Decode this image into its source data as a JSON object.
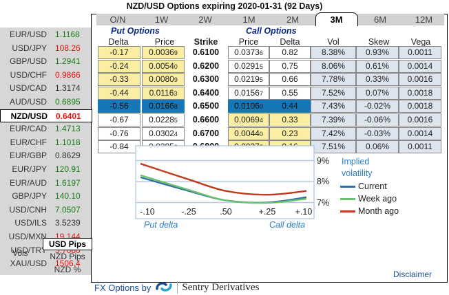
{
  "title": "NZD/USD Options expiring 2020-01-31 (92 Days)",
  "tabs": [
    {
      "label": "O/N",
      "active": false
    },
    {
      "label": "1W",
      "active": false
    },
    {
      "label": "2W",
      "active": false
    },
    {
      "label": "1M",
      "active": false
    },
    {
      "label": "2M",
      "active": false
    },
    {
      "label": "3M",
      "active": true
    },
    {
      "label": "6M",
      "active": false
    },
    {
      "label": "12M",
      "active": false
    }
  ],
  "pairs": [
    {
      "name": "EUR/USD",
      "value": "1.1168",
      "color": "green"
    },
    {
      "name": "USD/JPY",
      "value": "108.26",
      "color": "red"
    },
    {
      "name": "GBP/USD",
      "value": "1.2941",
      "color": "green"
    },
    {
      "name": "USD/CHF",
      "value": "0.9866",
      "color": "red"
    },
    {
      "name": "USD/CAD",
      "value": "1.3174",
      "color": "gray"
    },
    {
      "name": "AUD/USD",
      "value": "0.6895",
      "color": "green"
    },
    {
      "name": "NZD/USD",
      "value": "0.6401",
      "color": "red",
      "selected": true
    },
    {
      "name": "EUR/CAD",
      "value": "1.4713",
      "color": "green"
    },
    {
      "name": "EUR/CHF",
      "value": "1.1018",
      "color": "green"
    },
    {
      "name": "EUR/GBP",
      "value": "0.8629",
      "color": "gray"
    },
    {
      "name": "EUR/JPY",
      "value": "120.91",
      "color": "green"
    },
    {
      "name": "EUR/AUD",
      "value": "1.6197",
      "color": "green"
    },
    {
      "name": "GBP/JPY",
      "value": "140.10",
      "color": "green"
    },
    {
      "name": "USD/CNH",
      "value": "7.0507",
      "color": "green"
    },
    {
      "name": "USD/ILS",
      "value": "3.5239",
      "color": "gray"
    },
    {
      "name": "USD/MXN",
      "value": "19.144",
      "color": "red"
    },
    {
      "name": "USD/TRY",
      "value": "5.7080",
      "color": "red"
    },
    {
      "name": "XAU/USD",
      "value": "1506.4",
      "color": "red"
    }
  ],
  "units": {
    "vols_label": "Vols",
    "options": [
      {
        "label": "USD Pips",
        "selected": true
      },
      {
        "label": "NZD Pips",
        "selected": false
      },
      {
        "label": "NZD %",
        "selected": false
      }
    ]
  },
  "table": {
    "put_header": "Put Options",
    "call_header": "Call Options",
    "columns": {
      "put_delta": "Delta",
      "put_price": "Price",
      "strike": "Strike",
      "call_price": "Price",
      "call_delta": "Delta",
      "vol": "Vol",
      "skew": "Skew",
      "vega": "Vega"
    },
    "rows": [
      {
        "put_delta": "-0.17",
        "put_price": "0.0036",
        "put_price_sub": "9",
        "strike": "0.6100",
        "call_price": "0.0373",
        "call_price_sub": "6",
        "call_delta": "0.82",
        "vol": "8.38%",
        "skew": "0.93%",
        "vega": "0.0011",
        "put_style": "yellow",
        "call_style": "white"
      },
      {
        "put_delta": "-0.24",
        "put_price": "0.0054",
        "put_price_sub": "0",
        "strike": "0.6200",
        "call_price": "0.0291",
        "call_price_sub": "5",
        "call_delta": "0.75",
        "vol": "8.06%",
        "skew": "0.61%",
        "vega": "0.0014",
        "put_style": "yellow",
        "call_style": "white"
      },
      {
        "put_delta": "-0.33",
        "put_price": "0.0080",
        "put_price_sub": "9",
        "strike": "0.6300",
        "call_price": "0.0219",
        "call_price_sub": "5",
        "call_delta": "0.66",
        "vol": "7.78%",
        "skew": "0.33%",
        "vega": "0.0016",
        "put_style": "yellow",
        "call_style": "white"
      },
      {
        "put_delta": "-0.44",
        "put_price": "0.0116",
        "put_price_sub": "3",
        "strike": "0.6400",
        "call_price": "0.0156",
        "call_price_sub": "7",
        "call_delta": "0.55",
        "vol": "7.52%",
        "skew": "0.07%",
        "vega": "0.0018",
        "put_style": "yellow",
        "call_style": "white"
      },
      {
        "put_delta": "-0.56",
        "put_price": "0.0166",
        "put_price_sub": "8",
        "strike": "0.6500",
        "call_price": "0.0106",
        "call_price_sub": "0",
        "call_delta": "0.44",
        "vol": "7.43%",
        "skew": "-0.02%",
        "vega": "0.0018",
        "put_style": "blue",
        "call_style": "blue"
      },
      {
        "put_delta": "-0.67",
        "put_price": "0.0228",
        "put_price_sub": "5",
        "strike": "0.6600",
        "call_price": "0.0069",
        "call_price_sub": "4",
        "call_delta": "0.33",
        "vol": "7.39%",
        "skew": "-0.06%",
        "vega": "0.0016",
        "put_style": "white",
        "call_style": "yellow"
      },
      {
        "put_delta": "-0.76",
        "put_price": "0.0302",
        "put_price_sub": "4",
        "strike": "0.6700",
        "call_price": "0.0044",
        "call_price_sub": "0",
        "call_delta": "0.23",
        "vol": "7.42%",
        "skew": "-0.03%",
        "vega": "0.0014",
        "put_style": "white",
        "call_style": "yellow"
      },
      {
        "put_delta": "-0.84",
        "put_price": "0.0385",
        "put_price_sub": "9",
        "strike": "0.6800",
        "call_price": "0.0027",
        "call_price_sub": "5",
        "call_delta": "0.16",
        "vol": "7.51%",
        "skew": "0.06%",
        "vega": "0.0011",
        "put_style": "white",
        "call_style": "yellow"
      }
    ]
  },
  "chart_data": {
    "type": "line",
    "title": "Implied volatility",
    "x": [
      "-.10",
      "-.25",
      ".50",
      "+.25",
      "+.10"
    ],
    "xlabel_left": "Put delta",
    "xlabel_right": "Call delta",
    "yticks": [
      "9%",
      "8%",
      "7%"
    ],
    "ylim": [
      6.7,
      9.75
    ],
    "grid": true,
    "legend_position": "right",
    "series": [
      {
        "name": "Current",
        "color": "#2e6fa8",
        "values": [
          8.2,
          7.55,
          7.1,
          7.0,
          7.25
        ]
      },
      {
        "name": "Week ago",
        "color": "#6cc26c",
        "values": [
          8.3,
          7.6,
          7.1,
          6.98,
          7.18
        ]
      },
      {
        "name": "Month ago",
        "color": "#c23a1c",
        "values": [
          8.85,
          8.1,
          7.55,
          7.37,
          7.55
        ]
      }
    ]
  },
  "disclaimer": "Disclaimer",
  "footer": {
    "prefix": "FX Options by",
    "brand": "Sentry Derivatives"
  }
}
